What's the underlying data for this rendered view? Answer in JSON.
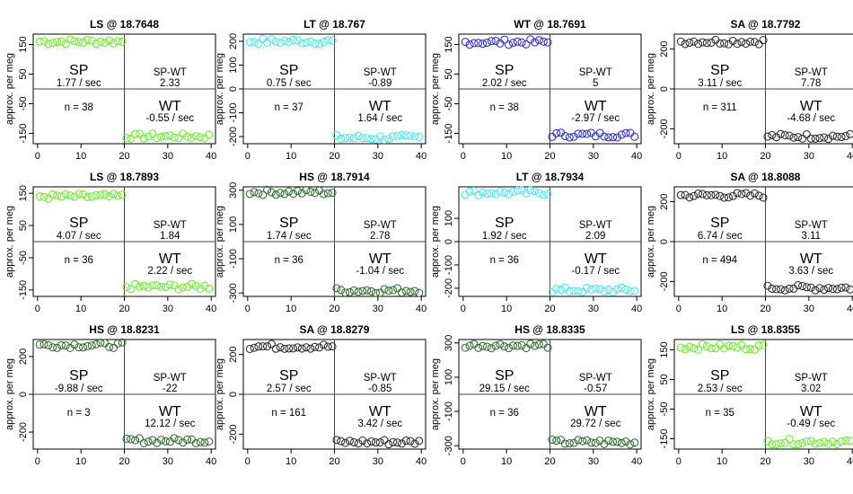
{
  "x_axis": {
    "ticks": [
      0,
      10,
      20,
      30,
      40
    ],
    "range": [
      -1,
      41
    ]
  },
  "ylabel": "approx. per meg",
  "marker": "open-circle",
  "panels": [
    {
      "title": "LS @ 18.7648",
      "color": "#66ee22",
      "ylim": [
        -185,
        185
      ],
      "yticks": [
        -150,
        -50,
        50,
        150
      ],
      "sp_level": 160,
      "wt_level": -160,
      "sp_label": "SP",
      "sp_rate": "1.77 / sec",
      "spwt_label": "SP-WT",
      "spwt_value": "2.33",
      "n_text": "n = 38",
      "wt_label": "WT",
      "wt_rate": "-0.55 / sec"
    },
    {
      "title": "LT @ 18.767",
      "color": "#44e8ee",
      "ylim": [
        -230,
        230
      ],
      "yticks": [
        -200,
        -100,
        0,
        100,
        200
      ],
      "sp_level": 200,
      "wt_level": -205,
      "sp_label": "SP",
      "sp_rate": "0.75 / sec",
      "spwt_label": "SP-WT",
      "spwt_value": "-0.89",
      "n_text": "n = 37",
      "wt_label": "WT",
      "wt_rate": "1.64 / sec"
    },
    {
      "title": "WT @ 18.7691",
      "color": "#2222dd",
      "ylim": [
        -185,
        185
      ],
      "yticks": [
        -150,
        -50,
        50,
        150
      ],
      "sp_level": 158,
      "wt_level": -155,
      "sp_label": "SP",
      "sp_rate": "2.02 / sec",
      "spwt_label": "SP-WT",
      "spwt_value": "5",
      "n_text": "n = 38",
      "wt_label": "WT",
      "wt_rate": "-2.97 / sec"
    },
    {
      "title": "SA @ 18.7792",
      "color": "#222222",
      "ylim": [
        -275,
        275
      ],
      "yticks": [
        -200,
        0,
        200
      ],
      "sp_level": 238,
      "wt_level": -238,
      "sp_label": "SP",
      "sp_rate": "3.11 / sec",
      "spwt_label": "SP-WT",
      "spwt_value": "7.78",
      "n_text": "n = 311",
      "wt_label": "WT",
      "wt_rate": "-4.68 / sec"
    },
    {
      "title": "LS @ 18.7893",
      "color": "#66ee22",
      "ylim": [
        -170,
        170
      ],
      "yticks": [
        -150,
        -50,
        50,
        150
      ],
      "sp_level": 140,
      "wt_level": -140,
      "sp_label": "SP",
      "sp_rate": "4.07 / sec",
      "spwt_label": "SP-WT",
      "spwt_value": "1.84",
      "n_text": "n = 36",
      "wt_label": "WT",
      "wt_rate": "2.22 / sec"
    },
    {
      "title": "HS @ 18.7914",
      "color": "#226622",
      "ylim": [
        -320,
        320
      ],
      "yticks": [
        -300,
        -100,
        100,
        300
      ],
      "sp_level": 288,
      "wt_level": -285,
      "sp_label": "SP",
      "sp_rate": "1.74 / sec",
      "spwt_label": "SP-WT",
      "spwt_value": "2.78",
      "n_text": "n = 36",
      "wt_label": "WT",
      "wt_rate": "-1.04 / sec"
    },
    {
      "title": "LT @ 18.7934",
      "color": "#44e8ee",
      "ylim": [
        -235,
        235
      ],
      "yticks": [
        -200,
        -100,
        0,
        100
      ],
      "sp_level": 210,
      "wt_level": -208,
      "sp_label": "SP",
      "sp_rate": "1.92 / sec",
      "spwt_label": "SP-WT",
      "spwt_value": "2.09",
      "n_text": "n = 36",
      "wt_label": "WT",
      "wt_rate": "-0.17 / sec"
    },
    {
      "title": "SA @ 18.8088",
      "color": "#222222",
      "ylim": [
        -275,
        275
      ],
      "yticks": [
        -200,
        0,
        200
      ],
      "sp_level": 232,
      "wt_level": -232,
      "sp_label": "SP",
      "sp_rate": "6.74 / sec",
      "spwt_label": "SP-WT",
      "spwt_value": "3.11",
      "n_text": "n = 494",
      "wt_label": "WT",
      "wt_rate": "3.63 / sec"
    },
    {
      "title": "HS @ 18.8231",
      "color": "#226622",
      "ylim": [
        -290,
        290
      ],
      "yticks": [
        -200,
        0,
        200
      ],
      "sp_level": 260,
      "wt_level": -245,
      "sp_label": "SP",
      "sp_rate": "-9.88 / sec",
      "spwt_label": "SP-WT",
      "spwt_value": "-22",
      "n_text": "n = 3",
      "wt_label": "WT",
      "wt_rate": "12.12 / sec"
    },
    {
      "title": "SA @ 18.8279",
      "color": "#222222",
      "ylim": [
        -275,
        275
      ],
      "yticks": [
        -200,
        0,
        200
      ],
      "sp_level": 240,
      "wt_level": -240,
      "sp_label": "SP",
      "sp_rate": "2.57 / sec",
      "spwt_label": "SP-WT",
      "spwt_value": "-0.85",
      "n_text": "n = 161",
      "wt_label": "WT",
      "wt_rate": "3.42 / sec"
    },
    {
      "title": "HS @ 18.8335",
      "color": "#226622",
      "ylim": [
        -320,
        320
      ],
      "yticks": [
        -300,
        -100,
        100,
        300
      ],
      "sp_level": 285,
      "wt_level": -280,
      "sp_label": "SP",
      "sp_rate": "29.15 / sec",
      "spwt_label": "SP-WT",
      "spwt_value": "-0.57",
      "n_text": "n = 36",
      "wt_label": "WT",
      "wt_rate": "29.72 / sec"
    },
    {
      "title": "LS @ 18.8355",
      "color": "#66ee22",
      "ylim": [
        -185,
        185
      ],
      "yticks": [
        -150,
        -50,
        50,
        150
      ],
      "sp_level": 160,
      "wt_level": -160,
      "sp_label": "SP",
      "sp_rate": "2.53 / sec",
      "spwt_label": "SP-WT",
      "spwt_value": "3.02",
      "n_text": "n = 35",
      "wt_label": "WT",
      "wt_rate": "-0.49 / sec"
    }
  ],
  "chart_data": {
    "type": "scatter",
    "layout": "3 rows x 4 columns of panels",
    "x": [
      0,
      40
    ],
    "ylabel": "approx. per meg",
    "series_note": "each panel: points 1-20 near SP level, points 21-40 near WT level; SP and WT levels are listed per panel in panels[] (sp_level, wt_level)"
  }
}
